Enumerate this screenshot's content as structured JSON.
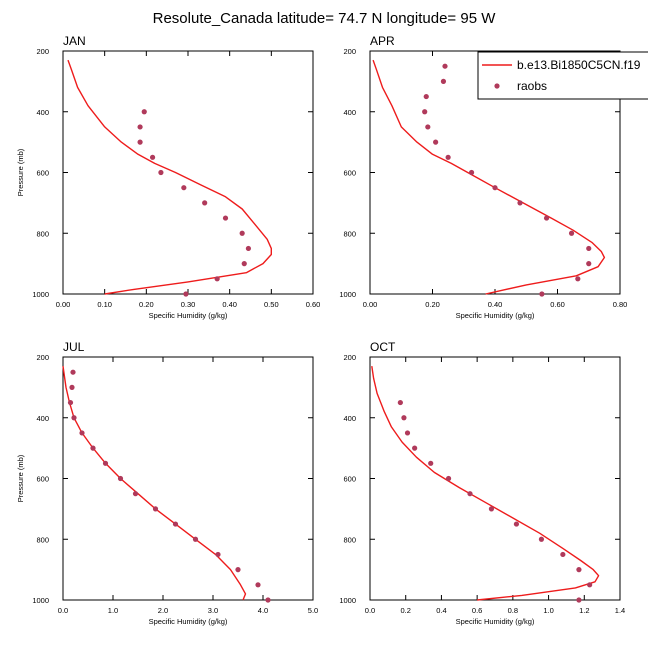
{
  "title": "Resolute_Canada  latitude= 74.7 N longitude= 95 W",
  "legend": {
    "model_label": "b.e13.Bi1850C5CN.f19",
    "obs_label": "raobs"
  },
  "colors": {
    "model": "#ee1c1c",
    "obs": "#b03a5b"
  },
  "chart_data": [
    {
      "type": "line",
      "panel": "JAN",
      "xlabel": "Specific Humidity (g/kg)",
      "ylabel": "Pressure (mb)",
      "xlim": [
        0,
        0.6
      ],
      "ylim": [
        1000,
        200
      ],
      "xticks": [
        "0.00",
        "0.10",
        "0.20",
        "0.30",
        "0.40",
        "0.50",
        "0.60"
      ],
      "yticks": [
        "200",
        "400",
        "600",
        "800",
        "1000"
      ],
      "model": {
        "x": [
          0.012,
          0.02,
          0.035,
          0.06,
          0.1,
          0.14,
          0.18,
          0.22,
          0.27,
          0.33,
          0.39,
          0.43,
          0.46,
          0.49,
          0.5,
          0.5,
          0.48,
          0.44,
          0.3,
          0.17,
          0.1
        ],
        "y": [
          230,
          260,
          320,
          380,
          450,
          500,
          540,
          570,
          600,
          640,
          680,
          720,
          770,
          820,
          850,
          870,
          900,
          930,
          960,
          985,
          1000
        ]
      },
      "obs": {
        "x": [
          0.195,
          0.185,
          0.185,
          0.215,
          0.235,
          0.29,
          0.34,
          0.39,
          0.43,
          0.445,
          0.435,
          0.37,
          0.295
        ],
        "y": [
          400,
          450,
          500,
          550,
          600,
          650,
          700,
          750,
          800,
          850,
          900,
          950,
          1000
        ]
      }
    },
    {
      "type": "line",
      "panel": "APR",
      "xlabel": "Specific Humidity (g/kg)",
      "ylabel": "",
      "xlim": [
        0,
        0.8
      ],
      "ylim": [
        1000,
        200
      ],
      "xticks": [
        "0.00",
        "0.20",
        "0.40",
        "0.60",
        "0.80"
      ],
      "yticks": [
        "200",
        "400",
        "600",
        "800",
        "1000"
      ],
      "model": {
        "x": [
          0.01,
          0.02,
          0.04,
          0.07,
          0.1,
          0.15,
          0.2,
          0.26,
          0.33,
          0.4,
          0.49,
          0.58,
          0.65,
          0.71,
          0.74,
          0.75,
          0.73,
          0.66,
          0.5,
          0.37
        ],
        "y": [
          230,
          260,
          320,
          380,
          450,
          500,
          540,
          570,
          610,
          650,
          700,
          750,
          790,
          830,
          860,
          880,
          910,
          940,
          970,
          1000
        ]
      },
      "obs": {
        "x": [
          0.24,
          0.235,
          0.18,
          0.175,
          0.185,
          0.21,
          0.25,
          0.325,
          0.4,
          0.48,
          0.565,
          0.645,
          0.7,
          0.7,
          0.665,
          0.55
        ],
        "y": [
          250,
          300,
          350,
          400,
          450,
          500,
          550,
          600,
          650,
          700,
          750,
          800,
          850,
          900,
          950,
          1000
        ]
      }
    },
    {
      "type": "line",
      "panel": "JUL",
      "xlabel": "Specific Humidity (g/kg)",
      "ylabel": "Pressure (mb)",
      "xlim": [
        0,
        5.0
      ],
      "ylim": [
        1000,
        200
      ],
      "xticks": [
        "0.0",
        "1.0",
        "2.0",
        "3.0",
        "4.0",
        "5.0"
      ],
      "yticks": [
        "200",
        "400",
        "600",
        "800",
        "1000"
      ],
      "model": {
        "x": [
          0.0,
          0.06,
          0.13,
          0.22,
          0.38,
          0.6,
          0.85,
          1.15,
          1.5,
          1.85,
          2.25,
          2.65,
          3.05,
          3.35,
          3.55,
          3.65,
          3.6
        ],
        "y": [
          230,
          300,
          350,
          400,
          450,
          500,
          550,
          600,
          650,
          700,
          750,
          800,
          850,
          900,
          950,
          980,
          1000
        ]
      },
      "obs": {
        "x": [
          0.2,
          0.18,
          0.15,
          0.22,
          0.38,
          0.6,
          0.85,
          1.15,
          1.45,
          1.85,
          2.25,
          2.65,
          3.1,
          3.5,
          3.9,
          4.1
        ],
        "y": [
          250,
          300,
          350,
          400,
          450,
          500,
          550,
          600,
          650,
          700,
          750,
          800,
          850,
          900,
          950,
          1000
        ]
      }
    },
    {
      "type": "line",
      "panel": "OCT",
      "xlabel": "Specific Humidity (g/kg)",
      "ylabel": "",
      "xlim": [
        0,
        1.4
      ],
      "ylim": [
        1000,
        200
      ],
      "xticks": [
        "0.0",
        "0.2",
        "0.4",
        "0.6",
        "0.8",
        "1.0",
        "1.2",
        "1.4"
      ],
      "yticks": [
        "200",
        "400",
        "600",
        "800",
        "1000"
      ],
      "model": {
        "x": [
          0.01,
          0.02,
          0.04,
          0.08,
          0.12,
          0.18,
          0.26,
          0.36,
          0.5,
          0.65,
          0.8,
          0.95,
          1.08,
          1.18,
          1.25,
          1.28,
          1.26,
          1.15,
          0.85,
          0.6
        ],
        "y": [
          230,
          270,
          320,
          380,
          430,
          480,
          530,
          580,
          630,
          680,
          730,
          780,
          830,
          870,
          900,
          920,
          940,
          960,
          985,
          1000
        ]
      },
      "obs": {
        "x": [
          0.17,
          0.19,
          0.21,
          0.25,
          0.34,
          0.44,
          0.56,
          0.68,
          0.82,
          0.96,
          1.08,
          1.17,
          1.23,
          1.17
        ],
        "y": [
          350,
          400,
          450,
          500,
          550,
          600,
          650,
          700,
          750,
          800,
          850,
          900,
          950,
          1000
        ]
      }
    }
  ]
}
